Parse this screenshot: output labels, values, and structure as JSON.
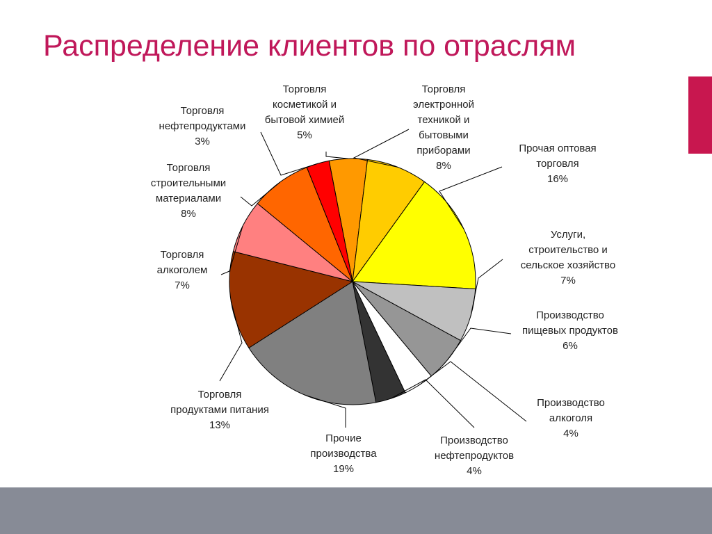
{
  "slide": {
    "title": "Распределение клиентов по отраслям"
  },
  "colors": {
    "title": "#c0185a",
    "accent_bar": "#c8174f",
    "footer": "#878b96",
    "outline": "#000000",
    "leader": "#000000",
    "label_text": "#222222"
  },
  "chart_data": {
    "type": "pie",
    "title": "",
    "start_angle_deg": -101,
    "direction": "clockwise",
    "slices": [
      {
        "label": "Торговля косметикой и бытовой химией",
        "value": 5,
        "display": "5%",
        "color": "#ff9900",
        "label_lines": [
          "Торговля",
          "косметикой и",
          "бытовой химией",
          "5%"
        ]
      },
      {
        "label": "Торговля электронной техникой и бытовыми приборами",
        "value": 8,
        "display": "8%",
        "color": "#ffcc00",
        "label_lines": [
          "Торговля",
          "электронной",
          "техникой и",
          "бытовыми",
          "приборами",
          "8%"
        ]
      },
      {
        "label": "Прочая оптовая торговля",
        "value": 16,
        "display": "16%",
        "color": "#ffff00",
        "label_lines": [
          "Прочая оптовая",
          "торговля",
          "16%"
        ]
      },
      {
        "label": "Услуги, строительство и сельское хозяйство",
        "value": 7,
        "display": "7%",
        "color": "#c0c0c0",
        "label_lines": [
          "Услуги,",
          "строительство и",
          "сельское хозяйство",
          "7%"
        ]
      },
      {
        "label": "Производство пищевых продуктов",
        "value": 6,
        "display": "6%",
        "color": "#969696",
        "label_lines": [
          "Производство",
          "пищевых продуктов",
          "6%"
        ]
      },
      {
        "label": "Производство алкоголя",
        "value": 4,
        "display": "4%",
        "color": "#ffffff",
        "label_lines": [
          "Производство",
          "алкоголя",
          "4%"
        ]
      },
      {
        "label": "Производство нефтепродуктов",
        "value": 4,
        "display": "4%",
        "color": "#333333",
        "label_lines": [
          "Производство",
          "нефтепродуктов",
          "4%"
        ]
      },
      {
        "label": "Прочие производства",
        "value": 19,
        "display": "19%",
        "color": "#808080",
        "label_lines": [
          "Прочие",
          "производства",
          "19%"
        ]
      },
      {
        "label": "Торговля продуктами питания",
        "value": 13,
        "display": "13%",
        "color": "#993300",
        "label_lines": [
          "Торговля",
          "продуктами питания",
          "13%"
        ]
      },
      {
        "label": "Торговля алкоголем",
        "value": 7,
        "display": "7%",
        "color": "#ff8080",
        "label_lines": [
          "Торговля",
          "алкоголем",
          "7%"
        ]
      },
      {
        "label": "Торговля строительными материалами",
        "value": 8,
        "display": "8%",
        "color": "#ff6600",
        "label_lines": [
          "Торговля",
          "строительными",
          "материалами",
          "8%"
        ]
      },
      {
        "label": "Торговля нефтепродуктами",
        "value": 3,
        "display": "3%",
        "color": "#ff0000",
        "label_lines": [
          "Торговля",
          "нефтепродуктами",
          "3%"
        ]
      }
    ]
  }
}
